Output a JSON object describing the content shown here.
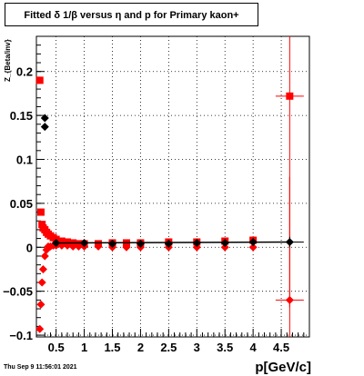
{
  "chart_data": {
    "type": "scatter",
    "title": "Fitted δ 1/β versus η and p for Primary kaon+",
    "xlabel": "p[GeV/c]",
    "ylabel": "Z_{Beta/inv}",
    "xlim": [
      0.15,
      5.0
    ],
    "ylim": [
      -0.102,
      0.24
    ],
    "x_ticks": [
      "0.5",
      "1",
      "1.5",
      "2",
      "2.5",
      "3",
      "3.5",
      "4",
      "4.5"
    ],
    "y_ticks": [
      "−0.1",
      "−0.05",
      "0",
      "0.05",
      "0.1",
      "0.15",
      "0.2"
    ],
    "grid": true,
    "series": [
      {
        "color": "#ff0000",
        "marker": "square",
        "x": [
          0.21,
          0.23,
          0.25,
          0.27,
          0.3,
          0.33,
          0.36,
          0.4,
          0.45,
          0.5,
          0.6,
          0.7,
          0.8,
          0.9,
          1.0,
          1.25,
          1.5,
          1.75,
          2.0,
          2.5,
          3.0,
          3.5,
          4.0,
          4.65
        ],
        "y": [
          0.19,
          0.04,
          0.026,
          0.022,
          0.02,
          0.017,
          0.015,
          0.013,
          0.011,
          0.009,
          0.007,
          0.006,
          0.005,
          0.004,
          0.004,
          0.004,
          0.005,
          0.005,
          0.005,
          0.006,
          0.006,
          0.007,
          0.008,
          0.172
        ],
        "y_err": [
          0,
          0,
          0,
          0,
          0,
          0,
          0,
          0,
          0,
          0,
          0,
          0,
          0,
          0,
          0,
          0,
          0,
          0,
          0,
          0,
          0,
          0,
          0.002,
          0.24
        ],
        "x_err": [
          0,
          0,
          0,
          0,
          0,
          0,
          0,
          0,
          0,
          0,
          0,
          0,
          0,
          0,
          0,
          0,
          0,
          0,
          0,
          0,
          0,
          0,
          0,
          0.25
        ]
      },
      {
        "color": "#ff0000",
        "marker": "diamond",
        "x": [
          0.21,
          0.23,
          0.25,
          0.27,
          0.3,
          0.33,
          0.36,
          0.4,
          0.45,
          0.5,
          0.6,
          0.7,
          0.8,
          0.9,
          1.0,
          1.25,
          1.5,
          1.75,
          2.0,
          2.5,
          3.0,
          3.5,
          4.0,
          4.65
        ],
        "y": [
          -0.093,
          -0.065,
          -0.04,
          -0.025,
          -0.01,
          -0.003,
          0.001,
          0.001,
          0.002,
          0.002,
          0.002,
          0.002,
          0.001,
          0.001,
          0.001,
          0.001,
          0.0,
          0.0,
          0.0,
          0.0,
          0.0,
          0.0,
          0.0,
          -0.06
        ],
        "y_err": [
          0,
          0,
          0,
          0,
          0,
          0,
          0,
          0,
          0,
          0,
          0,
          0,
          0,
          0,
          0,
          0,
          0,
          0,
          0,
          0,
          0,
          0,
          0,
          0.14
        ],
        "x_err": [
          0,
          0,
          0,
          0,
          0,
          0,
          0,
          0,
          0,
          0,
          0,
          0,
          0,
          0,
          0,
          0,
          0,
          0,
          0,
          0,
          0,
          0,
          0,
          0.25
        ]
      },
      {
        "color": "#000000",
        "marker": "diamond",
        "x": [
          0.3,
          0.3,
          0.5,
          1.0,
          1.5,
          2.0,
          2.5,
          3.0,
          3.5,
          4.0,
          4.65
        ],
        "y": [
          0.147,
          0.137,
          0.005,
          0.005,
          0.004,
          0.004,
          0.004,
          0.005,
          0.005,
          0.006,
          0.006
        ],
        "y_err": [
          0,
          0,
          0,
          0,
          0,
          0,
          0,
          0,
          0,
          0,
          0.006
        ],
        "x_err": [
          0,
          0,
          0,
          0,
          0,
          0,
          0,
          0,
          0,
          0,
          0.25
        ]
      },
      {
        "color": "#000000",
        "marker": "line",
        "x": [
          0.5,
          4.65
        ],
        "y": [
          0.005,
          0.006
        ],
        "y_err": [],
        "x_err": []
      }
    ]
  },
  "footer": {
    "timestamp": "Thu Sep  9 11:56:01 2021"
  }
}
